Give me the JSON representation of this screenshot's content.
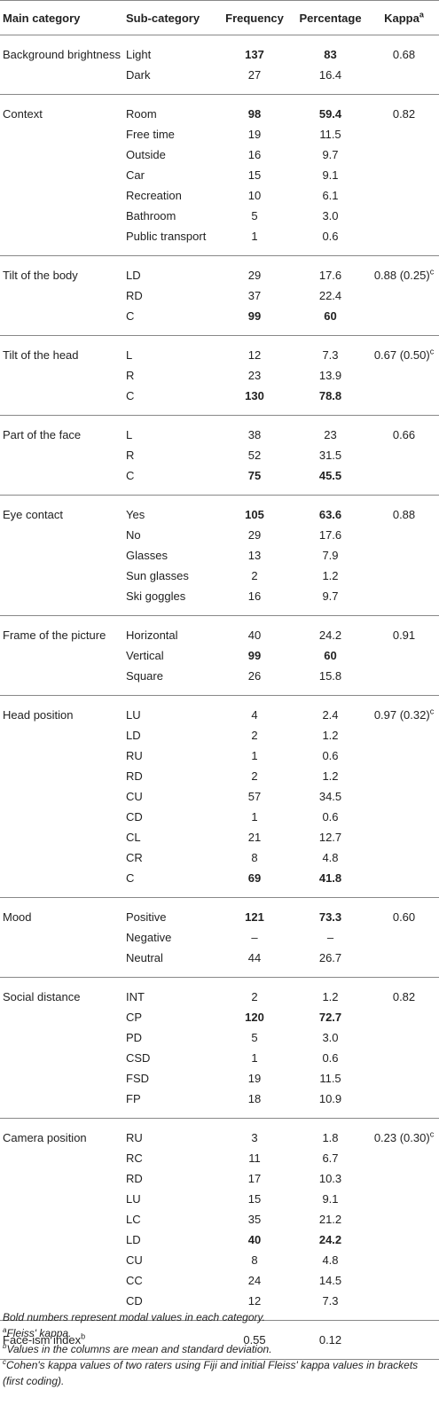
{
  "headers": {
    "main": "Main category",
    "sub": "Sub-category",
    "freq": "Frequency",
    "pct": "Percentage",
    "kappa": "Kappa",
    "kappa_sup": "a"
  },
  "categories": [
    {
      "name": "Background brightness",
      "kappa": "0.68",
      "kappa_sup": "",
      "rows": [
        {
          "sub": "Light",
          "freq": "137",
          "pct": "83",
          "bold": true
        },
        {
          "sub": "Dark",
          "freq": "27",
          "pct": "16.4",
          "bold": false
        }
      ]
    },
    {
      "name": "Context",
      "kappa": "0.82",
      "kappa_sup": "",
      "rows": [
        {
          "sub": "Room",
          "freq": "98",
          "pct": "59.4",
          "bold": true
        },
        {
          "sub": "Free time",
          "freq": "19",
          "pct": "11.5",
          "bold": false
        },
        {
          "sub": "Outside",
          "freq": "16",
          "pct": "9.7",
          "bold": false
        },
        {
          "sub": "Car",
          "freq": "15",
          "pct": "9.1",
          "bold": false
        },
        {
          "sub": "Recreation",
          "freq": "10",
          "pct": "6.1",
          "bold": false
        },
        {
          "sub": "Bathroom",
          "freq": "5",
          "pct": "3.0",
          "bold": false
        },
        {
          "sub": "Public transport",
          "freq": "1",
          "pct": "0.6",
          "bold": false
        }
      ]
    },
    {
      "name": "Tilt of the body",
      "kappa": "0.88 (0.25)",
      "kappa_sup": "c",
      "rows": [
        {
          "sub": "LD",
          "freq": "29",
          "pct": "17.6",
          "bold": false
        },
        {
          "sub": "RD",
          "freq": "37",
          "pct": "22.4",
          "bold": false
        },
        {
          "sub": "C",
          "freq": "99",
          "pct": "60",
          "bold": true
        }
      ]
    },
    {
      "name": "Tilt of the head",
      "kappa": "0.67 (0.50)",
      "kappa_sup": "c",
      "rows": [
        {
          "sub": "L",
          "freq": "12",
          "pct": "7.3",
          "bold": false
        },
        {
          "sub": "R",
          "freq": "23",
          "pct": "13.9",
          "bold": false
        },
        {
          "sub": "C",
          "freq": "130",
          "pct": "78.8",
          "bold": true
        }
      ]
    },
    {
      "name": "Part of the face",
      "kappa": "0.66",
      "kappa_sup": "",
      "rows": [
        {
          "sub": "L",
          "freq": "38",
          "pct": "23",
          "bold": false
        },
        {
          "sub": "R",
          "freq": "52",
          "pct": "31.5",
          "bold": false
        },
        {
          "sub": "C",
          "freq": "75",
          "pct": "45.5",
          "bold": true
        }
      ]
    },
    {
      "name": "Eye contact",
      "kappa": "0.88",
      "kappa_sup": "",
      "rows": [
        {
          "sub": "Yes",
          "freq": "105",
          "pct": "63.6",
          "bold": true
        },
        {
          "sub": "No",
          "freq": "29",
          "pct": "17.6",
          "bold": false
        },
        {
          "sub": "Glasses",
          "freq": "13",
          "pct": "7.9",
          "bold": false
        },
        {
          "sub": "Sun glasses",
          "freq": "2",
          "pct": "1.2",
          "bold": false
        },
        {
          "sub": "Ski goggles",
          "freq": "16",
          "pct": "9.7",
          "bold": false
        }
      ]
    },
    {
      "name": "Frame of the picture",
      "kappa": "0.91",
      "kappa_sup": "",
      "rows": [
        {
          "sub": "Horizontal",
          "freq": "40",
          "pct": "24.2",
          "bold": false
        },
        {
          "sub": "Vertical",
          "freq": "99",
          "pct": "60",
          "bold": true
        },
        {
          "sub": "Square",
          "freq": "26",
          "pct": "15.8",
          "bold": false
        }
      ]
    },
    {
      "name": "Head position",
      "kappa": "0.97 (0.32)",
      "kappa_sup": "c",
      "rows": [
        {
          "sub": "LU",
          "freq": "4",
          "pct": "2.4",
          "bold": false
        },
        {
          "sub": "LD",
          "freq": "2",
          "pct": "1.2",
          "bold": false
        },
        {
          "sub": "RU",
          "freq": "1",
          "pct": "0.6",
          "bold": false
        },
        {
          "sub": "RD",
          "freq": "2",
          "pct": "1.2",
          "bold": false
        },
        {
          "sub": "CU",
          "freq": "57",
          "pct": "34.5",
          "bold": false
        },
        {
          "sub": "CD",
          "freq": "1",
          "pct": "0.6",
          "bold": false
        },
        {
          "sub": "CL",
          "freq": "21",
          "pct": "12.7",
          "bold": false
        },
        {
          "sub": "CR",
          "freq": "8",
          "pct": "4.8",
          "bold": false
        },
        {
          "sub": "C",
          "freq": "69",
          "pct": "41.8",
          "bold": true
        }
      ]
    },
    {
      "name": "Mood",
      "kappa": "0.60",
      "kappa_sup": "",
      "rows": [
        {
          "sub": "Positive",
          "freq": "121",
          "pct": "73.3",
          "bold": true
        },
        {
          "sub": "Negative",
          "freq": "–",
          "pct": "–",
          "bold": false
        },
        {
          "sub": "Neutral",
          "freq": "44",
          "pct": "26.7",
          "bold": false
        }
      ]
    },
    {
      "name": "Social distance",
      "kappa": "0.82",
      "kappa_sup": "",
      "rows": [
        {
          "sub": "INT",
          "freq": "2",
          "pct": "1.2",
          "bold": false
        },
        {
          "sub": "CP",
          "freq": "120",
          "pct": "72.7",
          "bold": true
        },
        {
          "sub": "PD",
          "freq": "5",
          "pct": "3.0",
          "bold": false
        },
        {
          "sub": "CSD",
          "freq": "1",
          "pct": "0.6",
          "bold": false
        },
        {
          "sub": "FSD",
          "freq": "19",
          "pct": "11.5",
          "bold": false
        },
        {
          "sub": "FP",
          "freq": "18",
          "pct": "10.9",
          "bold": false
        }
      ]
    },
    {
      "name": "Camera position",
      "kappa": "0.23 (0.30)",
      "kappa_sup": "c",
      "rows": [
        {
          "sub": "RU",
          "freq": "3",
          "pct": "1.8",
          "bold": false
        },
        {
          "sub": "RC",
          "freq": "11",
          "pct": "6.7",
          "bold": false
        },
        {
          "sub": "RD",
          "freq": "17",
          "pct": "10.3",
          "bold": false
        },
        {
          "sub": "LU",
          "freq": "15",
          "pct": "9.1",
          "bold": false
        },
        {
          "sub": "LC",
          "freq": "35",
          "pct": "21.2",
          "bold": false
        },
        {
          "sub": "LD",
          "freq": "40",
          "pct": "24.2",
          "bold": true
        },
        {
          "sub": "CU",
          "freq": "8",
          "pct": "4.8",
          "bold": false
        },
        {
          "sub": "CC",
          "freq": "24",
          "pct": "14.5",
          "bold": false
        },
        {
          "sub": "CD",
          "freq": "12",
          "pct": "7.3",
          "bold": false
        }
      ]
    },
    {
      "name": "Face-ism index",
      "name_sup": "b",
      "kappa": "",
      "kappa_sup": "",
      "rows": [
        {
          "sub": "",
          "freq": "0.55",
          "pct": "0.12",
          "bold": false
        }
      ]
    }
  ],
  "footnotes": {
    "bold_note": "Bold numbers represent modal values in each category.",
    "a_mark": "a",
    "a_text": "Fleiss' kappa.",
    "b_mark": "b",
    "b_text": "Values in the columns are mean and standard deviation.",
    "c_mark": "c",
    "c_text": "Cohen's kappa values of two raters using Fiji and initial Fleiss' kappa values in brackets (first coding)."
  }
}
